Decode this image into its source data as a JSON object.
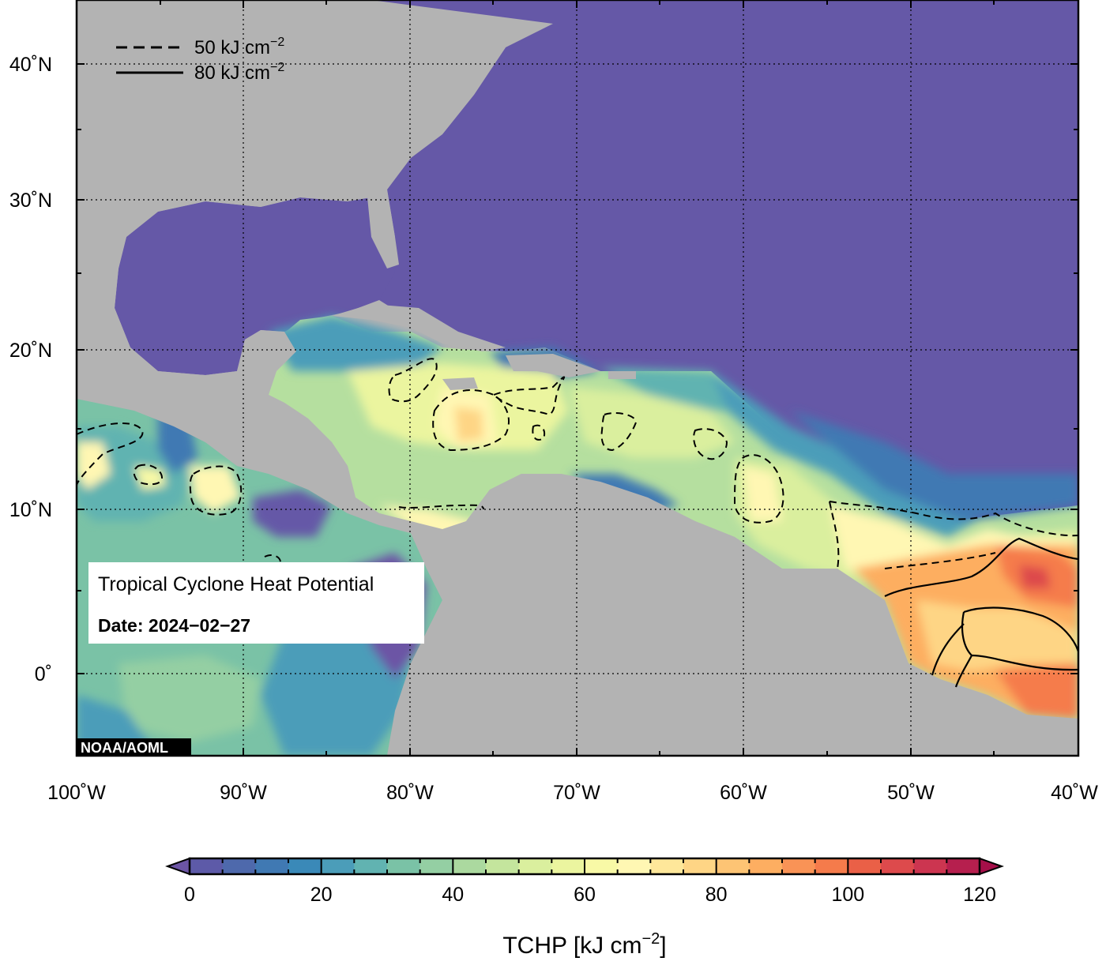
{
  "map": {
    "lat_labels": [
      "40˚N",
      "30˚N",
      "20˚N",
      "10˚N",
      "0˚"
    ],
    "lon_labels": [
      "100˚W",
      "90˚W",
      "80˚W",
      "70˚W",
      "60˚W",
      "50˚W",
      "40˚W"
    ]
  },
  "legend": {
    "dashed_label": "50 kJ cm",
    "solid_label": "80 kJ cm",
    "superscript": "−2"
  },
  "info_box": {
    "title": "Tropical Cyclone Heat Potential",
    "date_label": "Date: 2024−02−27"
  },
  "credit": "NOAA/AOML",
  "colorbar": {
    "tick_labels": [
      "0",
      "20",
      "40",
      "60",
      "80",
      "100",
      "120"
    ],
    "title": "TCHP [kJ cm",
    "title_sup": "−2",
    "title_end": "]"
  },
  "colors": {
    "land": "#b3b3b3",
    "ocean_low": "#6558a7",
    "scale": [
      "#6c55a5",
      "#5d5aa8",
      "#4e69ac",
      "#4079b3",
      "#3a89b8",
      "#4b9db9",
      "#61b3b1",
      "#7ac2a6",
      "#94cfa3",
      "#abd99f",
      "#c4e59d",
      "#daef9e",
      "#ebf59f",
      "#f8f9a6",
      "#fff7b3",
      "#fee79a",
      "#fed585",
      "#fdc474",
      "#fdae61",
      "#f99356",
      "#f57b4b",
      "#ea6047",
      "#dd4a4c",
      "#cc3550",
      "#b61f4e",
      "#a50f49"
    ]
  }
}
